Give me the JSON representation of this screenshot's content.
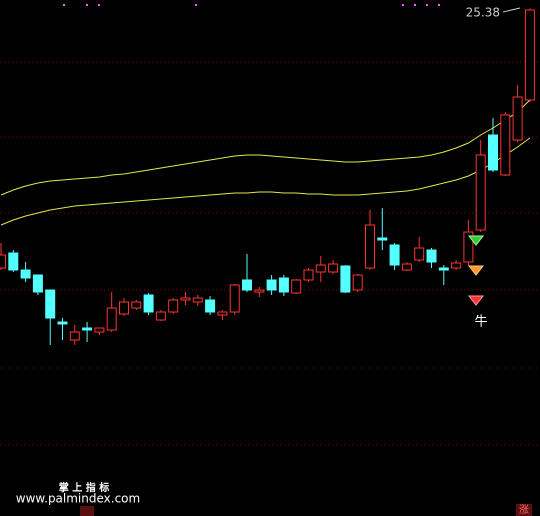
{
  "chart_data": {
    "type": "candlestick",
    "ylim": [
      0,
      25.8
    ],
    "up_color": "#ff3232",
    "down_color": "#54ffff",
    "open": [
      12.4,
      13.15,
      12.3,
      12.05,
      11.3,
      9.7,
      8.8,
      9.4,
      9.2,
      9.3,
      10.1,
      10.4,
      11.05,
      9.8,
      10.2,
      10.8,
      10.7,
      10.8,
      10.05,
      10.2,
      11.8,
      11.2,
      11.8,
      11.9,
      11.15,
      11.8,
      12.2,
      12.2,
      12.5,
      11.3,
      12.4,
      13.9,
      13.55,
      12.3,
      12.8,
      13.3,
      12.4,
      12.4,
      12.7,
      14.3,
      19.05,
      17.05,
      18.8,
      20.8
    ],
    "high": [
      13.65,
      13.3,
      12.7,
      12.05,
      11.3,
      9.9,
      9.55,
      9.7,
      9.4,
      11.2,
      10.9,
      10.8,
      11.15,
      10.3,
      10.9,
      11.2,
      11.05,
      11.0,
      10.3,
      11.6,
      13.1,
      11.45,
      12.05,
      12.05,
      11.85,
      12.4,
      13.0,
      12.8,
      12.55,
      12.1,
      15.3,
      15.4,
      13.65,
      12.7,
      13.95,
      13.4,
      12.55,
      12.8,
      14.8,
      18.8,
      19.9,
      20.2,
      21.55,
      25.38
    ],
    "low": [
      12.3,
      12.2,
      11.7,
      11.05,
      8.55,
      8.8,
      8.55,
      8.7,
      9.05,
      9.2,
      10.0,
      10.3,
      10.05,
      9.75,
      10.1,
      10.55,
      10.5,
      10.05,
      9.8,
      10.05,
      11.2,
      10.95,
      11.05,
      11.0,
      11.1,
      11.7,
      11.7,
      12.1,
      11.15,
      11.2,
      12.3,
      13.3,
      12.3,
      12.25,
      12.7,
      12.4,
      11.55,
      12.3,
      12.5,
      14.2,
      17.2,
      17.0,
      18.7,
      20.7
    ],
    "close": [
      13.05,
      12.3,
      11.9,
      11.2,
      9.9,
      9.6,
      9.2,
      9.3,
      9.4,
      10.4,
      10.7,
      10.7,
      10.2,
      10.2,
      10.8,
      10.9,
      10.9,
      10.2,
      10.2,
      11.55,
      11.3,
      11.3,
      11.3,
      11.2,
      11.8,
      12.3,
      12.55,
      12.6,
      11.2,
      12.05,
      14.55,
      13.8,
      12.55,
      12.6,
      13.4,
      12.7,
      12.3,
      12.65,
      14.2,
      18.05,
      17.3,
      20.05,
      20.95,
      25.3
    ],
    "series": [
      {
        "color": "#e6e64c",
        "values": [
          16.05,
          16.3,
          16.5,
          16.65,
          16.75,
          16.8,
          16.85,
          16.9,
          16.95,
          17.05,
          17.1,
          17.2,
          17.3,
          17.4,
          17.5,
          17.6,
          17.7,
          17.8,
          17.9,
          18.0,
          18.05,
          18.05,
          18.0,
          17.95,
          17.9,
          17.85,
          17.8,
          17.75,
          17.7,
          17.7,
          17.75,
          17.8,
          17.85,
          17.9,
          17.95,
          18.05,
          18.2,
          18.4,
          18.65,
          19.05,
          19.4,
          19.8,
          20.2,
          20.8
        ]
      },
      {
        "color": "#e6e64c",
        "values": [
          14.55,
          14.8,
          15.0,
          15.15,
          15.3,
          15.4,
          15.5,
          15.55,
          15.6,
          15.65,
          15.7,
          15.75,
          15.8,
          15.85,
          15.9,
          15.95,
          16.0,
          16.05,
          16.1,
          16.15,
          16.15,
          16.2,
          16.2,
          16.15,
          16.15,
          16.1,
          16.1,
          16.05,
          16.05,
          16.05,
          16.1,
          16.15,
          16.2,
          16.25,
          16.35,
          16.5,
          16.65,
          16.8,
          17.0,
          17.3,
          17.65,
          18.05,
          18.45,
          18.9
        ]
      }
    ],
    "max_label": "25.38",
    "signal_text": "牛",
    "watermark_title": "掌 上 指 标",
    "watermark_url": "www.palmindex.com",
    "corner_text": "涨"
  }
}
